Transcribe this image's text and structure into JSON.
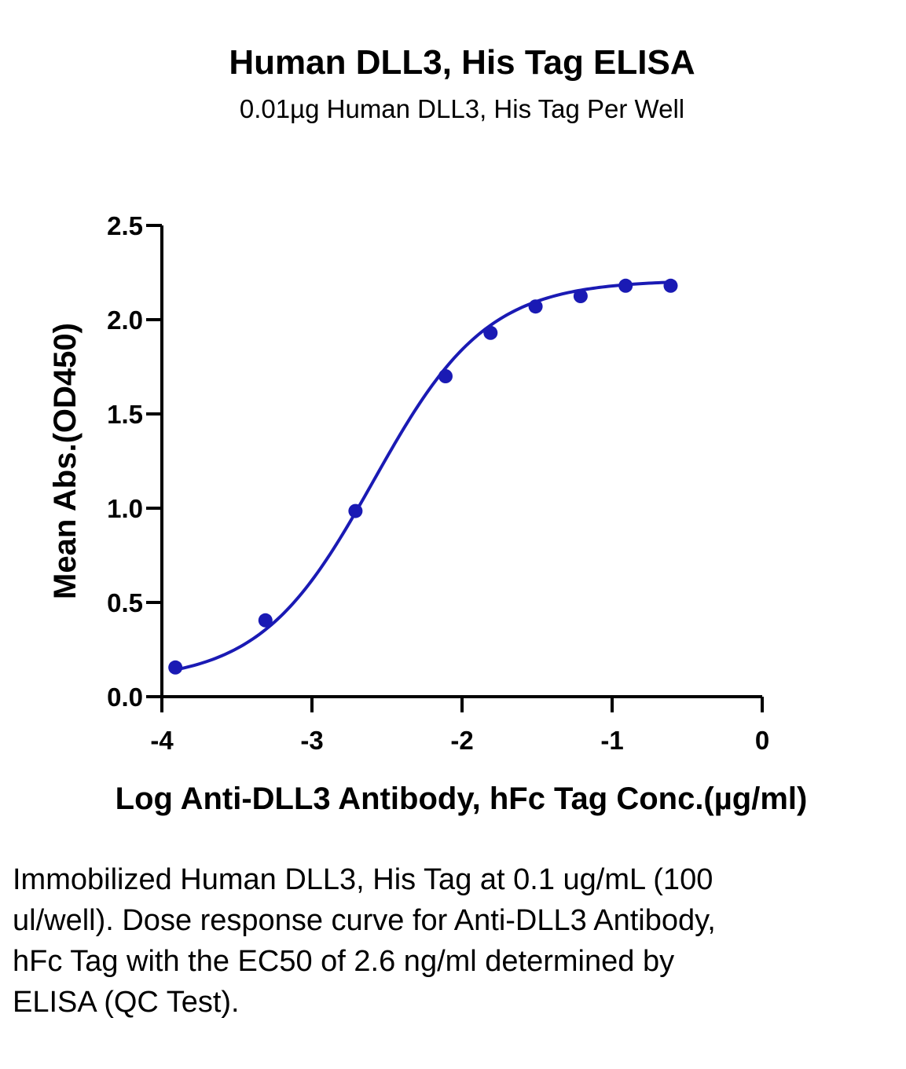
{
  "chart_data": {
    "type": "line",
    "title": "Human DLL3, His Tag ELISA",
    "subtitle": "0.01µg Human DLL3, His Tag Per Well",
    "xlabel": "Log Anti-DLL3 Antibody, hFc Tag Conc.(µg/ml)",
    "ylabel": "Mean Abs.(OD450)",
    "xlim": [
      -4,
      0
    ],
    "ylim": [
      0,
      2.5
    ],
    "x_ticks": [
      "-4",
      "-3",
      "-2",
      "-1",
      "0"
    ],
    "y_ticks": [
      "0.0",
      "0.5",
      "1.0",
      "1.5",
      "2.0",
      "2.5"
    ],
    "grid": false,
    "legend": "none",
    "series": [
      {
        "color": "#1a1ab4",
        "x": [
          -3.91,
          -3.31,
          -2.71,
          -2.11,
          -1.81,
          -1.51,
          -1.21,
          -0.91,
          -0.61
        ],
        "y": [
          0.155,
          0.405,
          0.985,
          1.7,
          1.93,
          2.07,
          2.125,
          2.18,
          2.18
        ]
      }
    ],
    "fit": {
      "model": "4PL",
      "bottom": 0.08,
      "top": 2.21,
      "logEC50": -2.59,
      "hill": 1.15
    }
  },
  "caption": "Immobilized Human DLL3, His Tag at 0.1 ug/mL (100 ul/well). Dose response curve for Anti-DLL3 Antibody, hFc Tag with the EC50 of 2.6 ng/ml determined by ELISA (QC Test)."
}
